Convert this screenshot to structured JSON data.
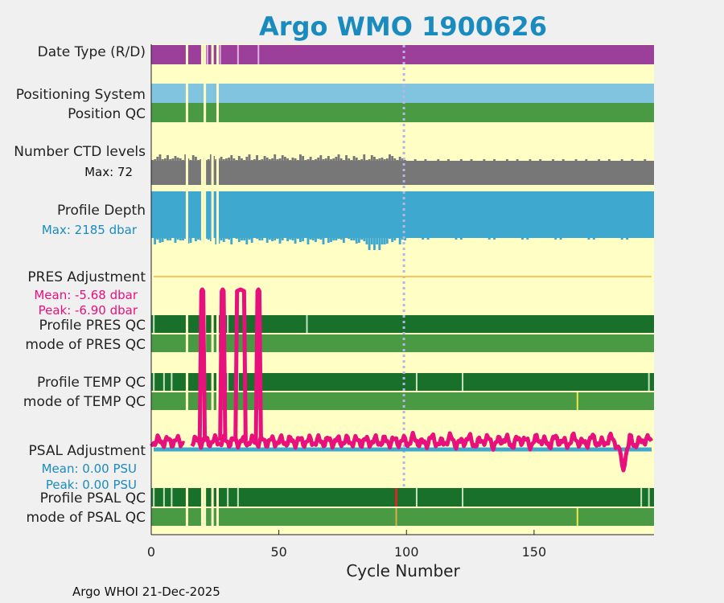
{
  "chart_data": {
    "type": "heatmap",
    "title": "Argo WMO 1900626",
    "xlabel": "Cycle Number",
    "xlim": [
      0,
      197
    ],
    "xticks": [
      "0",
      "50",
      "100",
      "150"
    ],
    "footer": "Argo WHOI 21-Dec-2025",
    "marker_cycle": 99,
    "rows": {
      "date_type": "Date Type (R/D)",
      "positioning_system": "Positioning System",
      "position_qc": "Position QC",
      "ctd_levels": "Number CTD levels",
      "ctd_max": "Max: 72",
      "profile_depth": "Profile Depth",
      "depth_max": "Max: 2185 dbar",
      "pres_adjustment": "PRES Adjustment",
      "pres_mean": "Mean: -5.68 dbar",
      "pres_peak": "Peak: -6.90 dbar",
      "profile_pres_qc": "Profile PRES QC",
      "mode_pres_qc": "mode of PRES QC",
      "profile_temp_qc": "Profile TEMP QC",
      "mode_temp_qc": "mode of TEMP QC",
      "psal_adjustment": "PSAL Adjustment",
      "psal_mean": "Mean: 0.00 PSU",
      "psal_peak": "Peak: 0.00 PSU",
      "profile_psal_qc": "Profile PSAL QC",
      "mode_psal_qc": "mode of PSAL QC"
    },
    "missing_cycles": [
      14,
      20,
      21,
      24,
      26
    ],
    "date_type_light_cycles": [
      22,
      27,
      34,
      42
    ],
    "pres_qc_light_cycles": [
      1,
      24,
      30,
      61
    ],
    "temp_qc_light_cycles": [
      1,
      5,
      8,
      24,
      30,
      34,
      104,
      122,
      195
    ],
    "temp_mode_marker_cycle": 167,
    "psal_qc_light_cycles": [
      1,
      5,
      8,
      24,
      30,
      34,
      104,
      122,
      192,
      195
    ],
    "psal_qc_bad_cycle": 96,
    "psal_mode_marker_cycles": [
      96,
      167
    ],
    "pres_spikes": [
      {
        "start": 19,
        "end": 21
      },
      {
        "start": 27,
        "end": 29
      },
      {
        "start": 33,
        "end": 37
      },
      {
        "start": 41,
        "end": 43
      }
    ],
    "colors": {
      "background": "#ffffc5",
      "date_type": "#9b3f9b",
      "positioning": "#80c4e0",
      "qc_light_green": "#4a9a44",
      "qc_dark_green": "#19702a",
      "qc_pale": "#c6e3c0",
      "ctd_gray": "#777777",
      "depth_blue": "#3fa8cf",
      "pres_line": "#f7c55a",
      "psal_line": "#3fa8cf",
      "adjust_pink": "#e8107c",
      "title": "#1a8bbf",
      "marker": "#b5b5e6",
      "qc_bad": "#d8282a",
      "qc_mode_marker": "#f2e64d"
    }
  }
}
